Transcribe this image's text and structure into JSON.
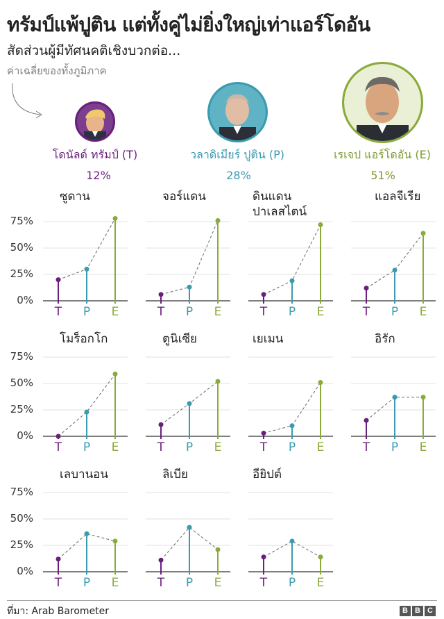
{
  "header": {
    "title": "ทรัมป์แพ้ปูติน แต่ทั้งคู่ไม่ยิ่งใหญ่เท่าแอร์โดอัน",
    "subtitle": "สัดส่วนผู้มีทัศนคติเชิงบวกต่อ...",
    "average_note": "ค่าเฉลี่ยของทั้งภูมิภาค"
  },
  "leaders": [
    {
      "name": "โดนัลด์ ทรัมป์ (T)",
      "short": "T",
      "average": "12%",
      "color": "#6b1f7c",
      "icon": "trump-portrait"
    },
    {
      "name": "วลาดิเมียร์ ปูติน  (P)",
      "short": "P",
      "average": "28%",
      "color": "#3a9bb0",
      "icon": "putin-portrait"
    },
    {
      "name": "เรเจป แอร์โดอัน (E)",
      "short": "E",
      "average": "51%",
      "color": "#8aaa3a",
      "icon": "erdogan-portrait"
    }
  ],
  "chart_data": {
    "type": "line",
    "title": "สัดส่วนผู้มีทัศนคติเชิงบวกต่อ...",
    "categories": [
      "T",
      "P",
      "E"
    ],
    "ylim": [
      0,
      80
    ],
    "yticks": [
      0,
      25,
      50,
      75
    ],
    "ytick_labels": [
      "0%",
      "25%",
      "50%",
      "75%"
    ],
    "panels": [
      {
        "name": "ซูดาน",
        "values": [
          20,
          30,
          78
        ]
      },
      {
        "name": "จอร์แดน",
        "values": [
          6,
          13,
          76
        ]
      },
      {
        "name": "ดินแดน\nปาเลสไตน์",
        "values": [
          6,
          19,
          72
        ]
      },
      {
        "name": "แอลจีเรีย",
        "values": [
          12,
          29,
          64
        ]
      },
      {
        "name": "โมร็อกโก",
        "values": [
          0,
          23,
          59
        ]
      },
      {
        "name": "ตูนิเซีย",
        "values": [
          11,
          31,
          52
        ]
      },
      {
        "name": "เยเมน",
        "values": [
          3,
          10,
          51
        ]
      },
      {
        "name": "อิรัก",
        "values": [
          15,
          37,
          37
        ]
      },
      {
        "name": "เลบานอน",
        "values": [
          12,
          36,
          29
        ]
      },
      {
        "name": "ลิเบีย",
        "values": [
          11,
          42,
          21
        ]
      },
      {
        "name": "อียิปต์",
        "values": [
          14,
          29,
          14
        ]
      }
    ]
  },
  "footer": {
    "source": "ที่มา: Arab Barometer",
    "logo": [
      "B",
      "B",
      "C"
    ]
  }
}
